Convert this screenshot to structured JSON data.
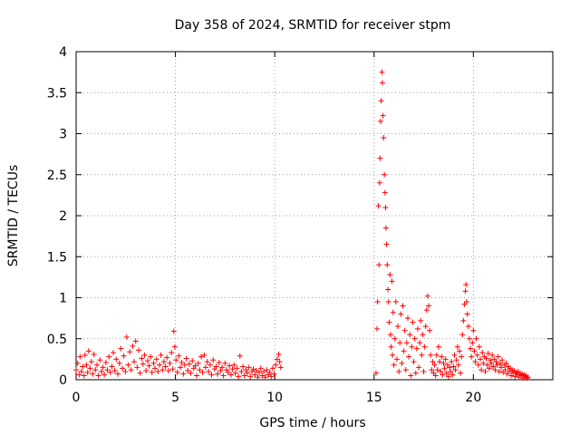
{
  "chart_data": {
    "type": "scatter",
    "title": "Day 358 of 2024, SRMTID for receiver stpm",
    "xlabel": "GPS time / hours",
    "ylabel": "SRMTID / TECUs",
    "xlim": [
      0,
      24
    ],
    "ylim": [
      0,
      4
    ],
    "x_ticks": [
      0,
      5,
      10,
      15,
      20
    ],
    "x_tick_labels": [
      "0",
      "5",
      "10",
      "15",
      "20"
    ],
    "y_ticks": [
      0,
      0.5,
      1,
      1.5,
      2,
      2.5,
      3,
      3.5,
      4
    ],
    "y_tick_labels": [
      "0",
      "0.5",
      "1",
      "1.5",
      "2",
      "2.5",
      "3",
      "3.5",
      "4"
    ],
    "grid": true,
    "marker": "+",
    "color": "#ff0000",
    "series": [
      {
        "name": "SRMTID",
        "points": [
          [
            0.0,
            0.12
          ],
          [
            0.08,
            0.2
          ],
          [
            0.15,
            0.06
          ],
          [
            0.2,
            0.28
          ],
          [
            0.27,
            0.1
          ],
          [
            0.33,
            0.16
          ],
          [
            0.4,
            0.05
          ],
          [
            0.45,
            0.3
          ],
          [
            0.52,
            0.18
          ],
          [
            0.58,
            0.09
          ],
          [
            0.63,
            0.35
          ],
          [
            0.7,
            0.14
          ],
          [
            0.77,
            0.22
          ],
          [
            0.83,
            0.07
          ],
          [
            0.9,
            0.31
          ],
          [
            0.97,
            0.12
          ],
          [
            1.05,
            0.18
          ],
          [
            1.12,
            0.05
          ],
          [
            1.2,
            0.24
          ],
          [
            1.28,
            0.1
          ],
          [
            1.35,
            0.15
          ],
          [
            1.42,
            0.06
          ],
          [
            1.5,
            0.21
          ],
          [
            1.57,
            0.12
          ],
          [
            1.65,
            0.28
          ],
          [
            1.72,
            0.09
          ],
          [
            1.8,
            0.16
          ],
          [
            1.87,
            0.33
          ],
          [
            1.95,
            0.11
          ],
          [
            2.02,
            0.25
          ],
          [
            2.1,
            0.07
          ],
          [
            2.18,
            0.2
          ],
          [
            2.25,
            0.38
          ],
          [
            2.33,
            0.14
          ],
          [
            2.4,
            0.29
          ],
          [
            2.48,
            0.1
          ],
          [
            2.55,
            0.52
          ],
          [
            2.62,
            0.18
          ],
          [
            2.7,
            0.34
          ],
          [
            2.77,
            0.12
          ],
          [
            2.85,
            0.41
          ],
          [
            2.92,
            0.22
          ],
          [
            3.0,
            0.47
          ],
          [
            3.07,
            0.15
          ],
          [
            3.15,
            0.36
          ],
          [
            3.22,
            0.08
          ],
          [
            3.3,
            0.26
          ],
          [
            3.37,
            0.19
          ],
          [
            3.45,
            0.3
          ],
          [
            3.52,
            0.11
          ],
          [
            3.6,
            0.23
          ],
          [
            3.67,
            0.17
          ],
          [
            3.75,
            0.28
          ],
          [
            3.82,
            0.09
          ],
          [
            3.9,
            0.2
          ],
          [
            3.97,
            0.14
          ],
          [
            4.05,
            0.25
          ],
          [
            4.12,
            0.1
          ],
          [
            4.2,
            0.18
          ],
          [
            4.27,
            0.3
          ],
          [
            4.35,
            0.12
          ],
          [
            4.42,
            0.22
          ],
          [
            4.5,
            0.16
          ],
          [
            4.57,
            0.27
          ],
          [
            4.65,
            0.11
          ],
          [
            4.72,
            0.2
          ],
          [
            4.8,
            0.33
          ],
          [
            4.87,
            0.13
          ],
          [
            4.92,
            0.59
          ],
          [
            4.97,
            0.4
          ],
          [
            5.03,
            0.24
          ],
          [
            5.1,
            0.09
          ],
          [
            5.17,
            0.29
          ],
          [
            5.25,
            0.15
          ],
          [
            5.32,
            0.21
          ],
          [
            5.4,
            0.07
          ],
          [
            5.47,
            0.18
          ],
          [
            5.55,
            0.26
          ],
          [
            5.62,
            0.11
          ],
          [
            5.7,
            0.19
          ],
          [
            5.77,
            0.08
          ],
          [
            5.85,
            0.23
          ],
          [
            5.92,
            0.14
          ],
          [
            6.0,
            0.17
          ],
          [
            6.07,
            0.05
          ],
          [
            6.15,
            0.2
          ],
          [
            6.22,
            0.12
          ],
          [
            6.3,
            0.28
          ],
          [
            6.37,
            0.09
          ],
          [
            6.45,
            0.3
          ],
          [
            6.52,
            0.15
          ],
          [
            6.6,
            0.22
          ],
          [
            6.67,
            0.1
          ],
          [
            6.75,
            0.18
          ],
          [
            6.82,
            0.06
          ],
          [
            6.9,
            0.24
          ],
          [
            6.97,
            0.13
          ],
          [
            7.05,
            0.16
          ],
          [
            7.12,
            0.07
          ],
          [
            7.2,
            0.21
          ],
          [
            7.27,
            0.11
          ],
          [
            7.35,
            0.15
          ],
          [
            7.42,
            0.05
          ],
          [
            7.5,
            0.2
          ],
          [
            7.57,
            0.12
          ],
          [
            7.65,
            0.09
          ],
          [
            7.72,
            0.17
          ],
          [
            7.8,
            0.06
          ],
          [
            7.87,
            0.13
          ],
          [
            7.95,
            0.18
          ],
          [
            8.02,
            0.08
          ],
          [
            8.1,
            0.14
          ],
          [
            8.17,
            0.04
          ],
          [
            8.25,
            0.29
          ],
          [
            8.32,
            0.1
          ],
          [
            8.4,
            0.16
          ],
          [
            8.47,
            0.05
          ],
          [
            8.55,
            0.12
          ],
          [
            8.62,
            0.08
          ],
          [
            8.7,
            0.15
          ],
          [
            8.77,
            0.04
          ],
          [
            8.85,
            0.1
          ],
          [
            8.92,
            0.13
          ],
          [
            9.0,
            0.06
          ],
          [
            9.07,
            0.11
          ],
          [
            9.15,
            0.03
          ],
          [
            9.22,
            0.09
          ],
          [
            9.3,
            0.14
          ],
          [
            9.37,
            0.05
          ],
          [
            9.45,
            0.1
          ],
          [
            9.52,
            0.03
          ],
          [
            9.6,
            0.12
          ],
          [
            9.67,
            0.06
          ],
          [
            9.75,
            0.09
          ],
          [
            9.82,
            0.04
          ],
          [
            9.9,
            0.14
          ],
          [
            9.97,
            0.07
          ],
          [
            10.05,
            0.18
          ],
          [
            10.12,
            0.25
          ],
          [
            10.2,
            0.31
          ],
          [
            10.25,
            0.22
          ],
          [
            10.3,
            0.15
          ],
          [
            15.1,
            0.08
          ],
          [
            15.15,
            0.62
          ],
          [
            15.18,
            0.95
          ],
          [
            15.22,
            2.12
          ],
          [
            15.25,
            1.4
          ],
          [
            15.28,
            2.4
          ],
          [
            15.3,
            2.7
          ],
          [
            15.33,
            3.15
          ],
          [
            15.36,
            3.4
          ],
          [
            15.4,
            3.75
          ],
          [
            15.42,
            3.62
          ],
          [
            15.45,
            3.22
          ],
          [
            15.48,
            2.95
          ],
          [
            15.52,
            2.5
          ],
          [
            15.55,
            2.28
          ],
          [
            15.58,
            2.1
          ],
          [
            15.6,
            1.85
          ],
          [
            15.63,
            1.65
          ],
          [
            15.66,
            1.4
          ],
          [
            15.7,
            1.1
          ],
          [
            15.73,
            0.95
          ],
          [
            15.76,
            0.7
          ],
          [
            15.8,
            1.28
          ],
          [
            15.83,
            0.55
          ],
          [
            15.86,
            0.4
          ],
          [
            15.9,
            1.2
          ],
          [
            15.93,
            0.3
          ],
          [
            15.96,
            0.82
          ],
          [
            16.0,
            0.18
          ],
          [
            16.05,
            0.5
          ],
          [
            16.1,
            0.95
          ],
          [
            16.15,
            0.25
          ],
          [
            16.2,
            0.65
          ],
          [
            16.25,
            0.1
          ],
          [
            16.3,
            0.45
          ],
          [
            16.35,
            0.8
          ],
          [
            16.4,
            0.2
          ],
          [
            16.45,
            0.9
          ],
          [
            16.5,
            0.35
          ],
          [
            16.55,
            0.6
          ],
          [
            16.6,
            0.12
          ],
          [
            16.65,
            0.45
          ],
          [
            16.7,
            0.75
          ],
          [
            16.75,
            0.28
          ],
          [
            16.8,
            0.55
          ],
          [
            16.85,
            0.05
          ],
          [
            16.9,
            0.4
          ],
          [
            16.95,
            0.7
          ],
          [
            17.0,
            0.22
          ],
          [
            17.05,
            0.5
          ],
          [
            17.1,
            0.08
          ],
          [
            17.15,
            0.38
          ],
          [
            17.2,
            0.62
          ],
          [
            17.25,
            0.15
          ],
          [
            17.3,
            0.45
          ],
          [
            17.35,
            0.72
          ],
          [
            17.4,
            0.3
          ],
          [
            17.45,
            0.55
          ],
          [
            17.5,
            0.1
          ],
          [
            17.55,
            0.4
          ],
          [
            17.6,
            0.65
          ],
          [
            17.65,
            0.85
          ],
          [
            17.7,
            1.02
          ],
          [
            17.75,
            0.9
          ],
          [
            17.8,
            0.6
          ],
          [
            17.85,
            0.3
          ],
          [
            17.9,
            0.12
          ],
          [
            17.95,
            0.22
          ],
          [
            18.0,
            0.08
          ],
          [
            18.05,
            0.18
          ],
          [
            18.1,
            0.05
          ],
          [
            18.15,
            0.3
          ],
          [
            18.2,
            0.12
          ],
          [
            18.25,
            0.4
          ],
          [
            18.3,
            0.22
          ],
          [
            18.35,
            0.1
          ],
          [
            18.4,
            0.28
          ],
          [
            18.45,
            0.06
          ],
          [
            18.5,
            0.2
          ],
          [
            18.55,
            0.14
          ],
          [
            18.6,
            0.25
          ],
          [
            18.65,
            0.08
          ],
          [
            18.7,
            0.18
          ],
          [
            18.75,
            0.04
          ],
          [
            18.8,
            0.15
          ],
          [
            18.85,
            0.1
          ],
          [
            18.9,
            0.22
          ],
          [
            18.95,
            0.06
          ],
          [
            19.0,
            0.16
          ],
          [
            19.05,
            0.3
          ],
          [
            19.1,
            0.12
          ],
          [
            19.15,
            0.24
          ],
          [
            19.2,
            0.4
          ],
          [
            19.25,
            0.18
          ],
          [
            19.3,
            0.35
          ],
          [
            19.35,
            0.08
          ],
          [
            19.4,
            0.28
          ],
          [
            19.45,
            0.55
          ],
          [
            19.5,
            0.72
          ],
          [
            19.55,
            0.92
          ],
          [
            19.6,
            1.08
          ],
          [
            19.63,
            1.16
          ],
          [
            19.66,
            0.95
          ],
          [
            19.7,
            0.8
          ],
          [
            19.75,
            0.65
          ],
          [
            19.8,
            0.5
          ],
          [
            19.85,
            0.38
          ],
          [
            19.9,
            0.28
          ],
          [
            19.95,
            0.45
          ],
          [
            20.0,
            0.6
          ],
          [
            20.05,
            0.35
          ],
          [
            20.1,
            0.22
          ],
          [
            20.15,
            0.5
          ],
          [
            20.2,
            0.3
          ],
          [
            20.25,
            0.18
          ],
          [
            20.3,
            0.4
          ],
          [
            20.35,
            0.25
          ],
          [
            20.4,
            0.12
          ],
          [
            20.45,
            0.33
          ],
          [
            20.5,
            0.2
          ],
          [
            20.55,
            0.28
          ],
          [
            20.6,
            0.1
          ],
          [
            20.65,
            0.26
          ],
          [
            20.7,
            0.18
          ],
          [
            20.75,
            0.32
          ],
          [
            20.8,
            0.14
          ],
          [
            20.85,
            0.24
          ],
          [
            20.9,
            0.2
          ],
          [
            20.95,
            0.3
          ],
          [
            21.0,
            0.16
          ],
          [
            21.05,
            0.25
          ],
          [
            21.1,
            0.12
          ],
          [
            21.15,
            0.22
          ],
          [
            21.2,
            0.18
          ],
          [
            21.25,
            0.28
          ],
          [
            21.3,
            0.1
          ],
          [
            21.35,
            0.2
          ],
          [
            21.4,
            0.15
          ],
          [
            21.45,
            0.24
          ],
          [
            21.5,
            0.09
          ],
          [
            21.55,
            0.18
          ],
          [
            21.6,
            0.12
          ],
          [
            21.65,
            0.2
          ],
          [
            21.7,
            0.07
          ],
          [
            21.75,
            0.16
          ],
          [
            21.8,
            0.1
          ],
          [
            21.85,
            0.14
          ],
          [
            21.9,
            0.05
          ],
          [
            21.95,
            0.12
          ],
          [
            22.0,
            0.08
          ],
          [
            22.05,
            0.11
          ],
          [
            22.1,
            0.04
          ],
          [
            22.15,
            0.09
          ],
          [
            22.2,
            0.06
          ],
          [
            22.25,
            0.1
          ],
          [
            22.3,
            0.03
          ],
          [
            22.35,
            0.08
          ],
          [
            22.4,
            0.05
          ],
          [
            22.45,
            0.07
          ],
          [
            22.5,
            0.02
          ],
          [
            22.55,
            0.06
          ],
          [
            22.6,
            0.04
          ],
          [
            22.65,
            0.05
          ],
          [
            22.7,
            0.02
          ],
          [
            22.75,
            0.03
          ]
        ]
      }
    ]
  }
}
